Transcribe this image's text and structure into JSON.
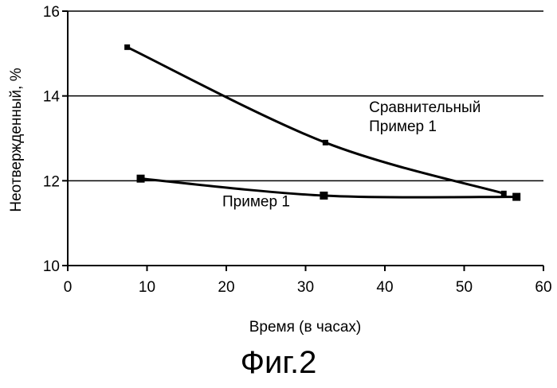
{
  "chart_data": {
    "type": "line",
    "xlabel": "Время (в часах)",
    "ylabel": "Неотвержденный, %",
    "xlim": [
      0,
      60
    ],
    "ylim": [
      10,
      16
    ],
    "xticks": [
      0,
      10,
      20,
      30,
      40,
      50,
      60
    ],
    "yticks": [
      10,
      12,
      14,
      16
    ],
    "grid": "horizontal",
    "series": [
      {
        "name": "Сравнительный Пример 1",
        "name_lines": [
          "Сравнительный",
          "Пример 1"
        ],
        "x": [
          7.5,
          32.5,
          55
        ],
        "y": [
          15.15,
          12.9,
          11.7
        ],
        "marker": "small-square"
      },
      {
        "name": "Пример 1",
        "name_lines": [
          "Пример 1"
        ],
        "x": [
          9.2,
          32.3,
          56.6
        ],
        "y": [
          12.05,
          11.65,
          11.62
        ],
        "marker": "square"
      }
    ]
  },
  "caption": "Фиг.2",
  "colors": {
    "ink": "#000000",
    "background": "#ffffff"
  }
}
